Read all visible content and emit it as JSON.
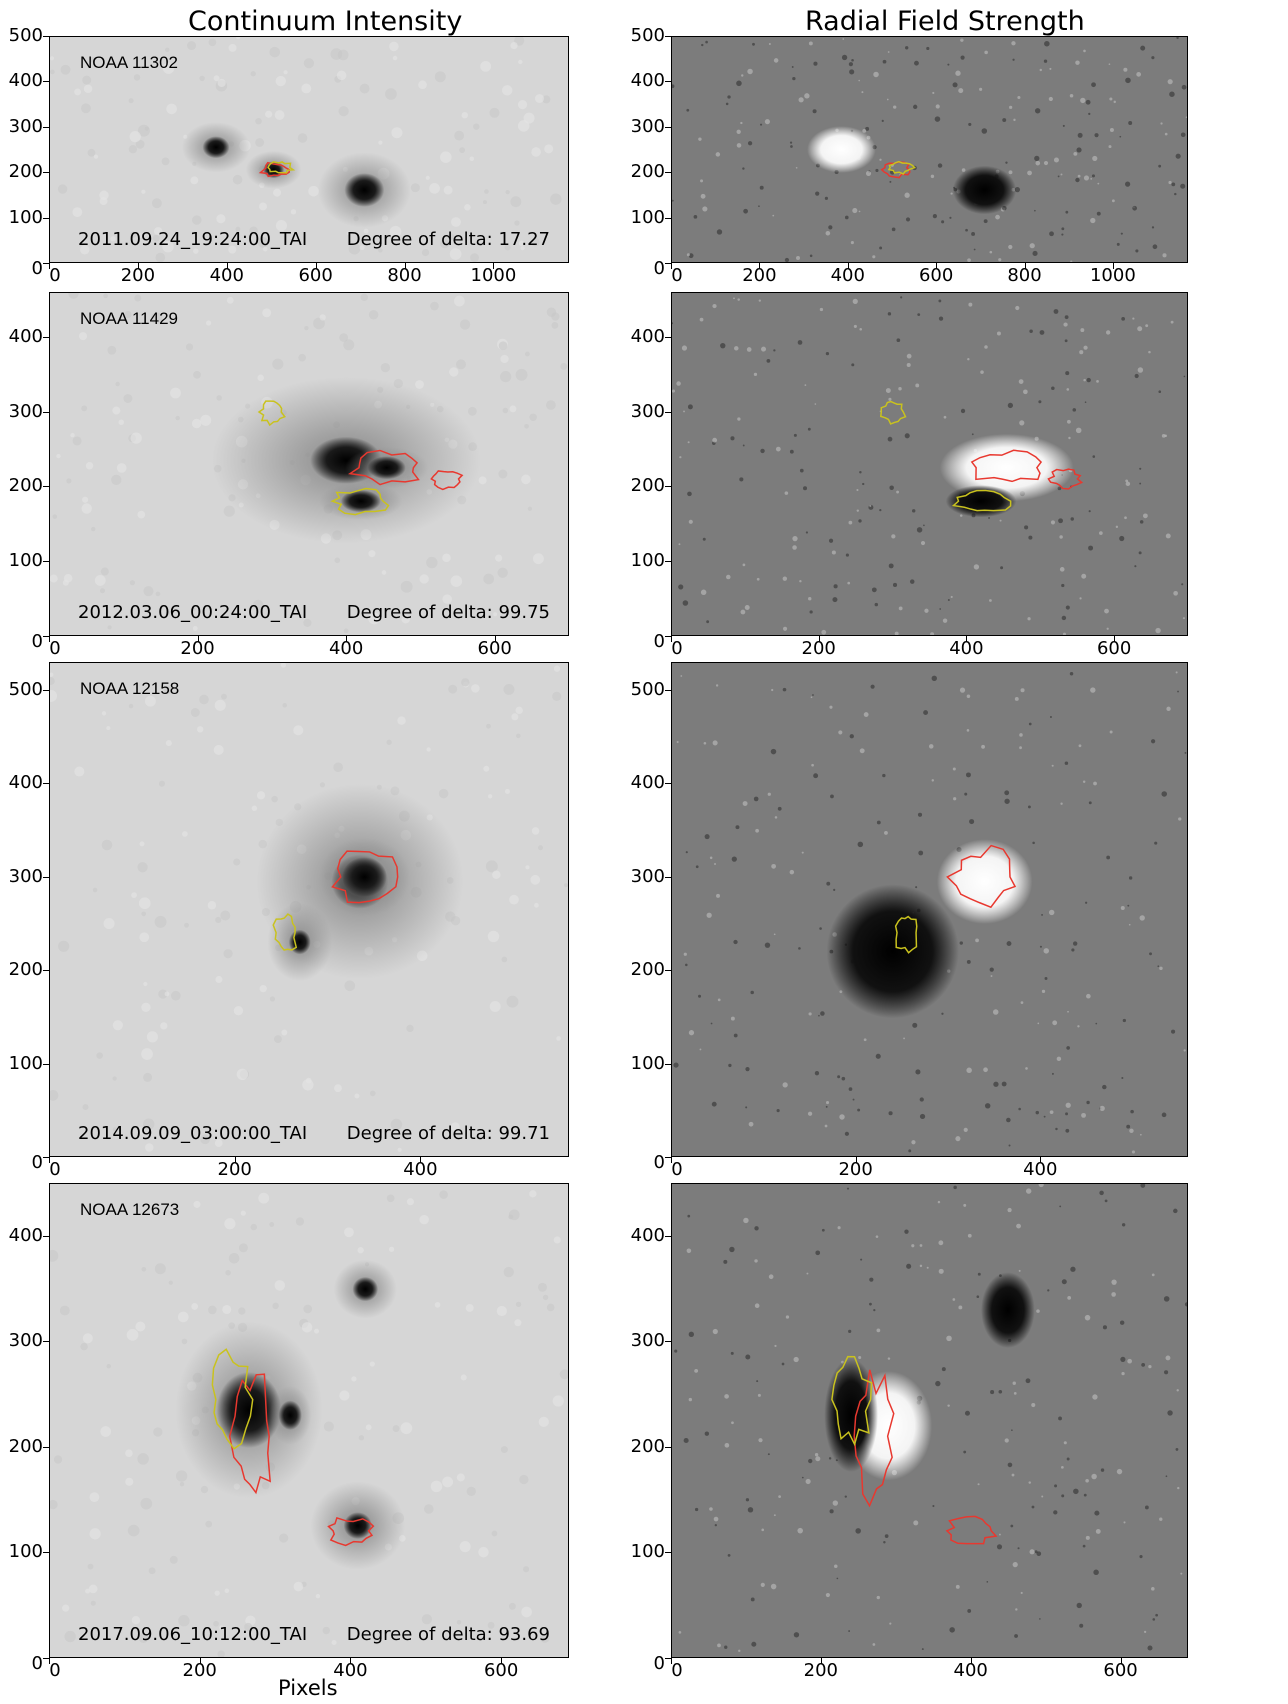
{
  "titles": {
    "left": "Continuum Intensity",
    "right": "Radial Field Strength"
  },
  "xlabel": "Pixels",
  "rows": [
    {
      "noaa": "NOAA 11302",
      "timestamp": "2011.09.24_19:24:00_TAI",
      "delta": "Degree of delta: 17.27",
      "yticks": [
        "500",
        "400",
        "300",
        "200",
        "100",
        "0"
      ],
      "xticks_left": [
        "0",
        "200",
        "400",
        "600",
        "800",
        "1000"
      ],
      "xticks_right": [
        "0",
        "200",
        "400",
        "600",
        "800",
        "1000"
      ]
    },
    {
      "noaa": "NOAA 11429",
      "timestamp": "2012.03.06_00:24:00_TAI",
      "delta": "Degree of delta: 99.75",
      "yticks": [
        "400",
        "300",
        "200",
        "100",
        "0"
      ],
      "xticks_left": [
        "0",
        "200",
        "400",
        "600"
      ],
      "xticks_right": [
        "0",
        "200",
        "400",
        "600"
      ]
    },
    {
      "noaa": "NOAA 12158",
      "timestamp": "2014.09.09_03:00:00_TAI",
      "delta": "Degree of delta: 99.71",
      "yticks": [
        "500",
        "400",
        "300",
        "200",
        "100",
        "0"
      ],
      "xticks_left": [
        "0",
        "200",
        "400"
      ],
      "xticks_right": [
        "0",
        "200",
        "400"
      ]
    },
    {
      "noaa": "NOAA 12673",
      "timestamp": "2017.09.06_10:12:00_TAI",
      "delta": "Degree of delta: 93.69",
      "yticks": [
        "400",
        "300",
        "200",
        "100",
        "0"
      ],
      "xticks_left": [
        "0",
        "200",
        "400",
        "600"
      ],
      "xticks_right": [
        "0",
        "200",
        "400",
        "600"
      ]
    }
  ],
  "colors": {
    "contour_positive": "#e8382f",
    "contour_negative": "#c9c21e",
    "intensity_bg": "#d6d6d6",
    "field_bg": "#7c7c7c"
  }
}
